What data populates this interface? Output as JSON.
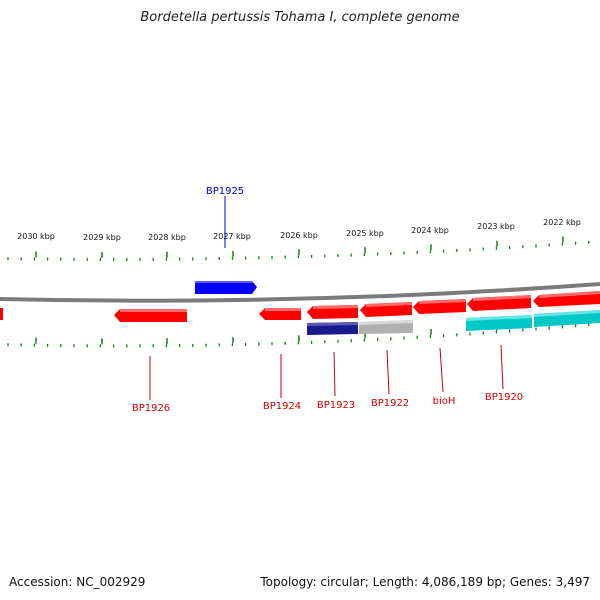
{
  "title": "Bordetella pertussis Tohama I, complete genome",
  "footer": {
    "accession": "Accession: NC_002929",
    "summary": "Topology: circular; Length: 4,086,189 bp; Genes: 3,497"
  },
  "colors": {
    "backbone": "#808080",
    "forward_gene": "#0000ff",
    "reverse_gene": "#ff0000",
    "cyan_feature": "#00c8c8",
    "navy_feature": "#1a1a8c",
    "grey_feature": "#b0b0b0",
    "tick": "#1a7a1a",
    "forward_label": "#0000cc",
    "reverse_label": "#cc0000"
  },
  "axis": {
    "unit_labels": [
      "2030 kbp",
      "2029 kbp",
      "2028 kbp",
      "2027 kbp",
      "2026 kbp",
      "2025 kbp",
      "2024 kbp",
      "2023 kbp",
      "2022 kbp"
    ]
  },
  "genes": [
    {
      "label": "BP1925",
      "strand": "forward"
    },
    {
      "label": "BP1926",
      "strand": "reverse"
    },
    {
      "label": "BP1924",
      "strand": "reverse"
    },
    {
      "label": "BP1923",
      "strand": "reverse"
    },
    {
      "label": "BP1922",
      "strand": "reverse"
    },
    {
      "label": "bioH",
      "strand": "reverse"
    },
    {
      "label": "BP1920",
      "strand": "reverse"
    }
  ]
}
